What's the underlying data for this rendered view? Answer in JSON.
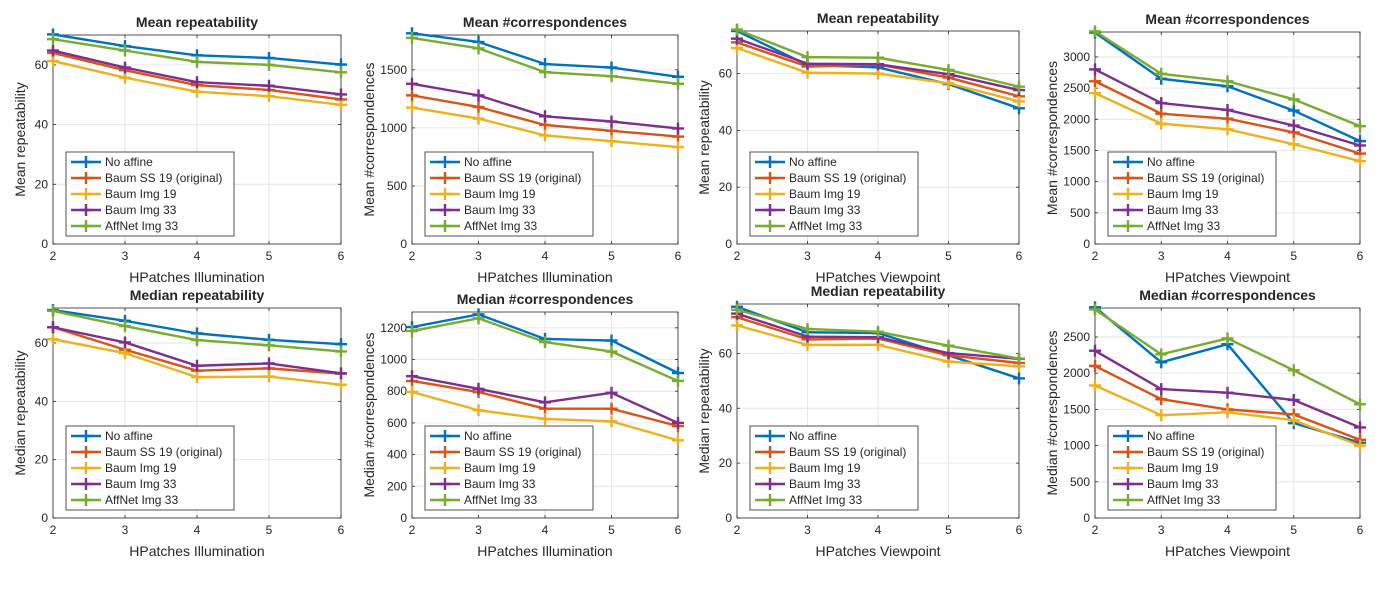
{
  "colors": {
    "No affine": "#0072BD",
    "Baum SS 19 (original)": "#D95319",
    "Baum Img 19": "#EDB120",
    "Baum Img 33": "#7E2F8E",
    "AffNet Img 33": "#77AC30"
  },
  "chart_data": [
    {
      "type": "line",
      "title": "Mean repeatability",
      "xlabel": "HPatches Illumination",
      "ylabel": "Mean repeatability",
      "x": [
        2,
        3,
        4,
        5,
        6
      ],
      "xlim": [
        2,
        6
      ],
      "ylim": [
        0,
        70
      ],
      "yticks": [
        0,
        20,
        40,
        60
      ],
      "grid": true,
      "legend_position": "bottom-left",
      "series": [
        {
          "name": "No affine",
          "values": [
            70.2,
            66.3,
            63.2,
            62.3,
            60.1
          ]
        },
        {
          "name": "Baum SS 19 (original)",
          "values": [
            64.0,
            58.2,
            53.2,
            51.6,
            48.4
          ]
        },
        {
          "name": "Baum Img 19",
          "values": [
            61.3,
            55.7,
            51.0,
            49.5,
            46.6
          ]
        },
        {
          "name": "Baum Img 33",
          "values": [
            64.8,
            59.1,
            54.2,
            53.0,
            50.1
          ]
        },
        {
          "name": "AffNet Img 33",
          "values": [
            68.6,
            64.8,
            61.0,
            60.0,
            57.5
          ]
        }
      ]
    },
    {
      "type": "line",
      "title": "Mean #correspondences",
      "xlabel": "HPatches Illumination",
      "ylabel": "Mean #correspondences",
      "x": [
        2,
        3,
        4,
        5,
        6
      ],
      "xlim": [
        2,
        6
      ],
      "ylim": [
        0,
        1800
      ],
      "yticks": [
        0,
        500,
        1000,
        1500
      ],
      "grid": true,
      "legend_position": "bottom-left",
      "series": [
        {
          "name": "No affine",
          "values": [
            1815,
            1740,
            1550,
            1520,
            1440
          ]
        },
        {
          "name": "Baum SS 19 (original)",
          "values": [
            1280,
            1180,
            1025,
            975,
            925
          ]
        },
        {
          "name": "Baum Img 19",
          "values": [
            1175,
            1080,
            935,
            885,
            835
          ]
        },
        {
          "name": "Baum Img 33",
          "values": [
            1380,
            1280,
            1100,
            1055,
            995
          ]
        },
        {
          "name": "AffNet Img 33",
          "values": [
            1775,
            1685,
            1480,
            1445,
            1380
          ]
        }
      ]
    },
    {
      "type": "line",
      "title": "Mean repeatability",
      "xlabel": "HPatches Viewpoint",
      "ylabel": "Mean repeatability",
      "x": [
        2,
        3,
        4,
        5,
        6
      ],
      "xlim": [
        2,
        6
      ],
      "ylim": [
        0,
        75
      ],
      "yticks": [
        0,
        20,
        40,
        60
      ],
      "grid": true,
      "legend_position": "bottom-left",
      "series": [
        {
          "name": "No affine",
          "values": [
            75.0,
            63.0,
            62.2,
            56.3,
            47.8
          ]
        },
        {
          "name": "Baum SS 19 (original)",
          "values": [
            71.0,
            62.5,
            63.2,
            58.6,
            52.0
          ]
        },
        {
          "name": "Baum Img 19",
          "values": [
            69.0,
            60.3,
            60.0,
            56.6,
            50.2
          ]
        },
        {
          "name": "Baum Img 33",
          "values": [
            72.3,
            63.5,
            63.3,
            59.8,
            54.2
          ]
        },
        {
          "name": "AffNet Img 33",
          "values": [
            75.5,
            65.8,
            65.6,
            61.3,
            55.4
          ]
        }
      ]
    },
    {
      "type": "line",
      "title": "Mean #correspondences",
      "xlabel": "HPatches Viewpoint",
      "ylabel": "Mean #correspondences",
      "x": [
        2,
        3,
        4,
        5,
        6
      ],
      "xlim": [
        2,
        6
      ],
      "ylim": [
        0,
        3400
      ],
      "yticks": [
        0,
        500,
        1000,
        1500,
        2000,
        2500,
        3000
      ],
      "grid": true,
      "legend_position": "bottom-left",
      "series": [
        {
          "name": "No affine",
          "values": [
            3390,
            2650,
            2530,
            2140,
            1650
          ]
        },
        {
          "name": "Baum SS 19 (original)",
          "values": [
            2610,
            2090,
            2010,
            1790,
            1450
          ]
        },
        {
          "name": "Baum Img 19",
          "values": [
            2420,
            1930,
            1840,
            1600,
            1330
          ]
        },
        {
          "name": "Baum Img 33",
          "values": [
            2800,
            2260,
            2150,
            1900,
            1580
          ]
        },
        {
          "name": "AffNet Img 33",
          "values": [
            3410,
            2730,
            2610,
            2320,
            1890
          ]
        }
      ]
    },
    {
      "type": "line",
      "title": "Median repeatability",
      "xlabel": "HPatches Illumination",
      "ylabel": "Median repeatability",
      "x": [
        2,
        3,
        4,
        5,
        6
      ],
      "xlim": [
        2,
        6
      ],
      "ylim": [
        0,
        72
      ],
      "yticks": [
        0,
        20,
        40,
        60
      ],
      "grid": true,
      "legend_position": "bottom-left",
      "series": [
        {
          "name": "No affine",
          "values": [
            71.3,
            67.6,
            63.3,
            61.1,
            59.6
          ]
        },
        {
          "name": "Baum SS 19 (original)",
          "values": [
            65.4,
            57.7,
            50.5,
            51.3,
            49.5
          ]
        },
        {
          "name": "Baum Img 19",
          "values": [
            61.3,
            56.5,
            48.3,
            48.5,
            45.7
          ]
        },
        {
          "name": "Baum Img 33",
          "values": [
            65.4,
            60.2,
            52.2,
            53.0,
            49.6
          ]
        },
        {
          "name": "AffNet Img 33",
          "values": [
            71.0,
            65.8,
            61.0,
            59.2,
            57.1
          ]
        }
      ]
    },
    {
      "type": "line",
      "title": "Median #correspondences",
      "xlabel": "HPatches Illumination",
      "ylabel": "Median #correspondences",
      "x": [
        2,
        3,
        4,
        5,
        6
      ],
      "xlim": [
        2,
        6
      ],
      "ylim": [
        0,
        1300
      ],
      "yticks": [
        0,
        200,
        400,
        600,
        800,
        1000,
        1200
      ],
      "grid": true,
      "legend_position": "bottom-left",
      "series": [
        {
          "name": "No affine",
          "values": [
            1205,
            1285,
            1130,
            1120,
            915
          ]
        },
        {
          "name": "Baum SS 19 (original)",
          "values": [
            865,
            795,
            690,
            690,
            580
          ]
        },
        {
          "name": "Baum Img 19",
          "values": [
            795,
            680,
            625,
            610,
            490
          ]
        },
        {
          "name": "Baum Img 33",
          "values": [
            895,
            815,
            730,
            790,
            600
          ]
        },
        {
          "name": "AffNet Img 33",
          "values": [
            1180,
            1260,
            1110,
            1050,
            865
          ]
        }
      ]
    },
    {
      "type": "line",
      "title": "Median repeatability",
      "xlabel": "HPatches Viewpoint",
      "ylabel": "Median repeatability",
      "x": [
        2,
        3,
        4,
        5,
        6
      ],
      "xlim": [
        2,
        6
      ],
      "ylim": [
        0,
        78
      ],
      "yticks": [
        0,
        20,
        40,
        60
      ],
      "grid": true,
      "legend_position": "bottom-left",
      "series": [
        {
          "name": "No affine",
          "values": [
            77.0,
            67.7,
            67.4,
            59.3,
            50.9
          ]
        },
        {
          "name": "Baum SS 19 (original)",
          "values": [
            73.2,
            65.1,
            65.4,
            59.3,
            56.5
          ]
        },
        {
          "name": "Baum Img 19",
          "values": [
            70.2,
            63.1,
            63.1,
            57.0,
            55.3
          ]
        },
        {
          "name": "Baum Img 33",
          "values": [
            74.5,
            66.1,
            65.9,
            60.1,
            58.0
          ]
        },
        {
          "name": "AffNet Img 33",
          "values": [
            75.9,
            68.9,
            67.9,
            62.8,
            58.1
          ]
        }
      ]
    },
    {
      "type": "line",
      "title": "Median #correspondences",
      "xlabel": "HPatches Viewpoint",
      "ylabel": "Median #correspondences",
      "x": [
        2,
        3,
        4,
        5,
        6
      ],
      "xlim": [
        2,
        6
      ],
      "ylim": [
        0,
        2900
      ],
      "yticks": [
        0,
        500,
        1000,
        1500,
        2000,
        2500
      ],
      "grid": true,
      "legend_position": "bottom-left",
      "series": [
        {
          "name": "No affine",
          "values": [
            2910,
            2150,
            2400,
            1310,
            1040
          ]
        },
        {
          "name": "Baum SS 19 (original)",
          "values": [
            2100,
            1640,
            1500,
            1430,
            1080
          ]
        },
        {
          "name": "Baum Img 19",
          "values": [
            1830,
            1420,
            1460,
            1350,
            1000
          ]
        },
        {
          "name": "Baum Img 33",
          "values": [
            2310,
            1780,
            1730,
            1630,
            1250
          ]
        },
        {
          "name": "AffNet Img 33",
          "values": [
            2880,
            2260,
            2480,
            2040,
            1570
          ]
        }
      ]
    }
  ]
}
